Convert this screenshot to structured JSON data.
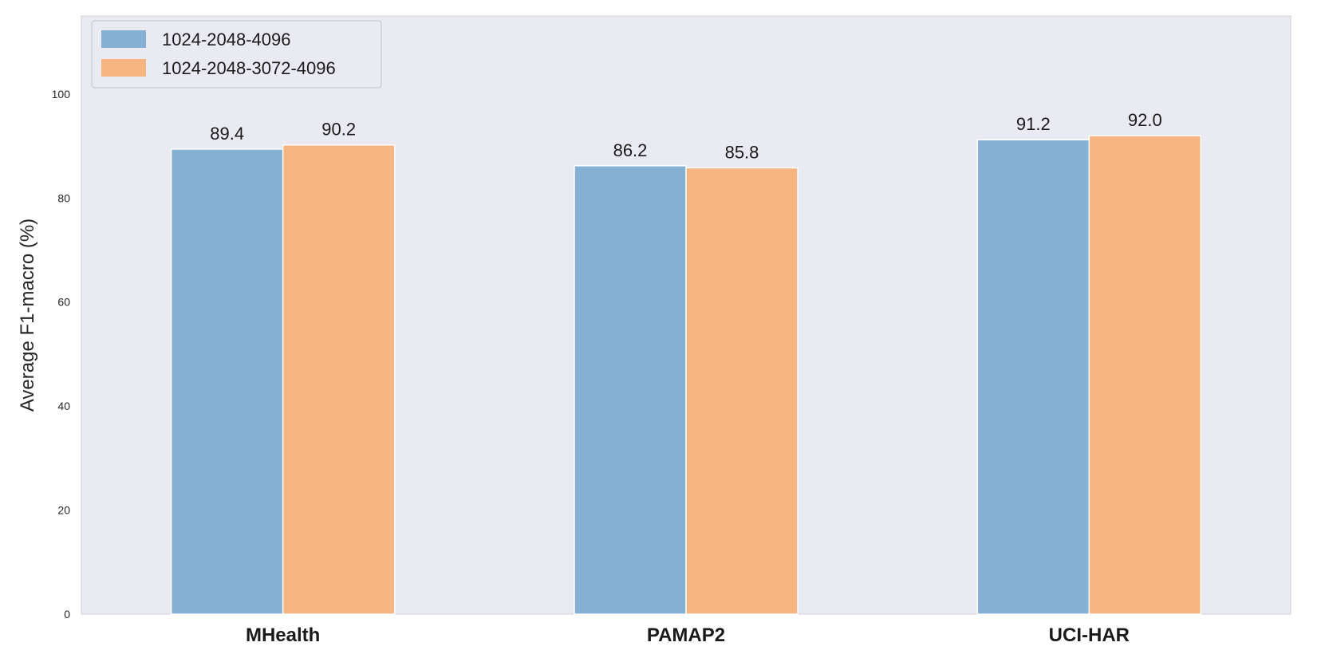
{
  "chart_data": {
    "type": "bar",
    "title": "",
    "xlabel": "",
    "ylabel": "Average F1-macro (%)",
    "ylim": [
      0,
      115
    ],
    "yticks": [
      0,
      20,
      40,
      60,
      80,
      100
    ],
    "grid": false,
    "legend_position": "top-left",
    "categories": [
      "MHealth",
      "PAMAP2",
      "UCI-HAR"
    ],
    "series": [
      {
        "name": "1024-2048-4096",
        "color": "#86afd4",
        "values": [
          89.4,
          86.2,
          91.2
        ],
        "labels": [
          "89.4",
          "86.2",
          "91.2"
        ]
      },
      {
        "name": "1024-2048-3072-4096",
        "color": "#f6b482",
        "values": [
          90.2,
          85.8,
          92.0
        ],
        "labels": [
          "90.2",
          "85.8",
          "92.0"
        ]
      }
    ],
    "background_color": "#eaeaf2"
  }
}
